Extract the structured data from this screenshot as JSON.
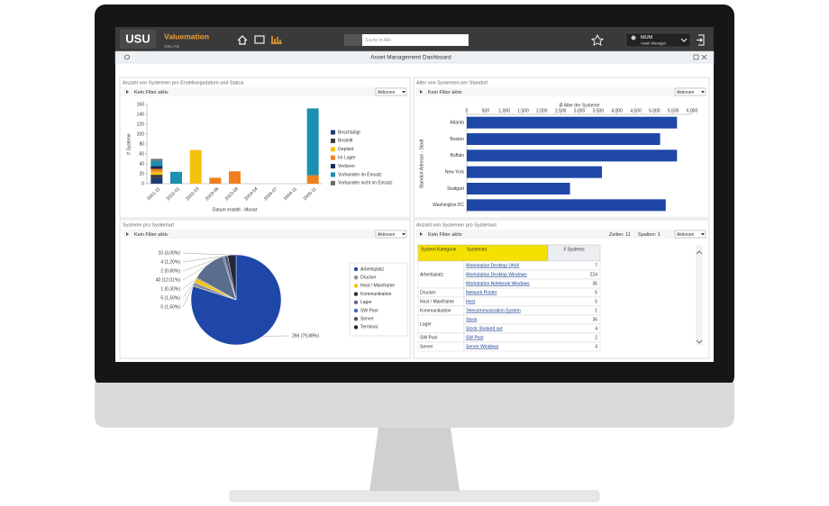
{
  "header": {
    "logo": "USU",
    "app": "Valuemation",
    "company": "USU AG",
    "search_placeholder": "Suche in Alle",
    "user": "MUM",
    "role": "Asset Manager"
  },
  "dashboard_title": "Asset Management Dashboard",
  "status_chart": {
    "panel_title": "Anzahl von Systemen pro Erstellungsdatum und Status",
    "filter": "Kein Filter aktiv",
    "actions": "Aktionen",
    "chart_data": {
      "type": "bar",
      "stacked": true,
      "y_label": "# Systeme",
      "x_label": "Datum erstellt - Monat",
      "categories": [
        "2001-11",
        "2002-01",
        "2002-03",
        "2003-06",
        "2003-08",
        "2004-04",
        "2004-07",
        "2004-11",
        "2005-11"
      ],
      "series": [
        {
          "name": "Beschädigt",
          "color": "#1f3b73",
          "values": [
            12,
            0,
            0,
            0,
            0,
            0,
            0,
            0,
            0
          ]
        },
        {
          "name": "Bestellt",
          "color": "#3b3b3b",
          "values": [
            6,
            0,
            0,
            0,
            0,
            0,
            0,
            0,
            0
          ]
        },
        {
          "name": "Geplant",
          "color": "#f4c20d",
          "values": [
            6,
            0,
            68,
            0,
            0,
            0,
            0,
            0,
            0
          ]
        },
        {
          "name": "Im Lager",
          "color": "#f07f1d",
          "values": [
            6,
            0,
            0,
            12,
            25,
            0,
            0,
            0,
            17
          ]
        },
        {
          "name": "Verloren",
          "color": "#162a55",
          "values": [
            6,
            0,
            0,
            0,
            0,
            0,
            0,
            0,
            0
          ]
        },
        {
          "name": "Vorhanden im Einsatz",
          "color": "#1d8fb0",
          "values": [
            10,
            24,
            0,
            0,
            0,
            0,
            0,
            0,
            135
          ]
        },
        {
          "name": "Vorhanden nicht im Einsatz",
          "color": "#6b6b6b",
          "values": [
            4,
            0,
            0,
            0,
            0,
            0,
            0,
            0,
            0
          ]
        }
      ],
      "ylim": [
        0,
        160
      ],
      "yticks": [
        0,
        20,
        40,
        60,
        80,
        100,
        120,
        140,
        160
      ],
      "legend": "right"
    }
  },
  "location_chart": {
    "panel_title": "Alter von Systemen per Standort",
    "filter": "Kein Filter aktiv",
    "actions": "Aktionen",
    "chart_data": {
      "type": "bar",
      "orientation": "horizontal",
      "x_label": "Ø Alter der Systeme",
      "y_label": "Standort Adresse - Stadt",
      "categories": [
        "Atlanta",
        "Boston",
        "Buffalo",
        "New York",
        "Stuttgart",
        "Washington DC"
      ],
      "values": [
        5600,
        5150,
        5600,
        3600,
        2750,
        5300
      ],
      "color": "#1e47a8",
      "xlim": [
        0,
        6000
      ],
      "xticks": [
        0,
        500,
        {
          "value": 1000,
          "label": "1,000"
        },
        {
          "value": 1500,
          "label": "1,500"
        },
        {
          "value": 2000,
          "label": "2,000"
        },
        {
          "value": 2500,
          "label": "2,500"
        },
        {
          "value": 3000,
          "label": "3,000"
        },
        {
          "value": 3500,
          "label": "3,500"
        },
        {
          "value": 4000,
          "label": "4,000"
        },
        {
          "value": 4500,
          "label": "4,500"
        },
        {
          "value": 5000,
          "label": "5,000"
        },
        {
          "value": 5500,
          "label": "5,500"
        },
        {
          "value": 6000,
          "label": "6,000"
        }
      ]
    }
  },
  "type_pie": {
    "panel_title": "Systeme pro Systemart",
    "filter": "Kein Filter aktiv",
    "actions": "Aktionen",
    "chart_data": {
      "type": "pie",
      "categories": [
        "Arbeitsplatz",
        "Drucker",
        "Host / Mainframe",
        "Kommunikation",
        "Lager",
        "SW Pool",
        "Server",
        "Terminal"
      ],
      "values": [
        266,
        5,
        5,
        1,
        40,
        2,
        4,
        10
      ],
      "value_labels": [
        "266 (79,88%)",
        "5 (1,50%)",
        "5 (1,50%)",
        "1 (0,30%)",
        "40 (12,01%)",
        "2 (0,60%)",
        "4 (1,20%)",
        "10 (3,00%)"
      ],
      "colors": [
        "#1e47a8",
        "#8a8f99",
        "#f4c20d",
        "#2b2b3a",
        "#5b6d8c",
        "#3f67c7",
        "#55595f",
        "#23283a"
      ]
    }
  },
  "type_table": {
    "panel_title": "Anzahl von Systemen pro Systemart",
    "filter": "Kein Filter aktiv",
    "actions": "Aktionen",
    "rows_info": "Zeilen: 11",
    "cols_info": "Spalten: 1",
    "table": {
      "headers": [
        "System Kategorie",
        "Systemart",
        "# Systems"
      ],
      "groups": [
        {
          "category": "Arbeitsplatz",
          "items": [
            {
              "name": "Workstation Desktop UNIX",
              "count": 7
            },
            {
              "name": "Workstation Desktop Windows",
              "count": 224
            },
            {
              "name": "Workstation Notebook Windows",
              "count": 35
            }
          ]
        },
        {
          "category": "Drucker",
          "items": [
            {
              "name": "Network Printer",
              "count": 5
            }
          ]
        },
        {
          "category": "Host / Mainframe",
          "items": [
            {
              "name": "Host",
              "count": 5
            }
          ]
        },
        {
          "category": "Kommunikation",
          "items": [
            {
              "name": "Telecommunication System",
              "count": 1
            }
          ]
        },
        {
          "category": "Lager",
          "items": [
            {
              "name": "Stock",
              "count": 36
            },
            {
              "name": "Stock: Booked out",
              "count": 4
            }
          ]
        },
        {
          "category": "SW Pool",
          "items": [
            {
              "name": "SW Pool",
              "count": 2
            }
          ]
        },
        {
          "category": "Server",
          "items": [
            {
              "name": "Server Windows",
              "count": 4
            }
          ]
        }
      ]
    }
  }
}
